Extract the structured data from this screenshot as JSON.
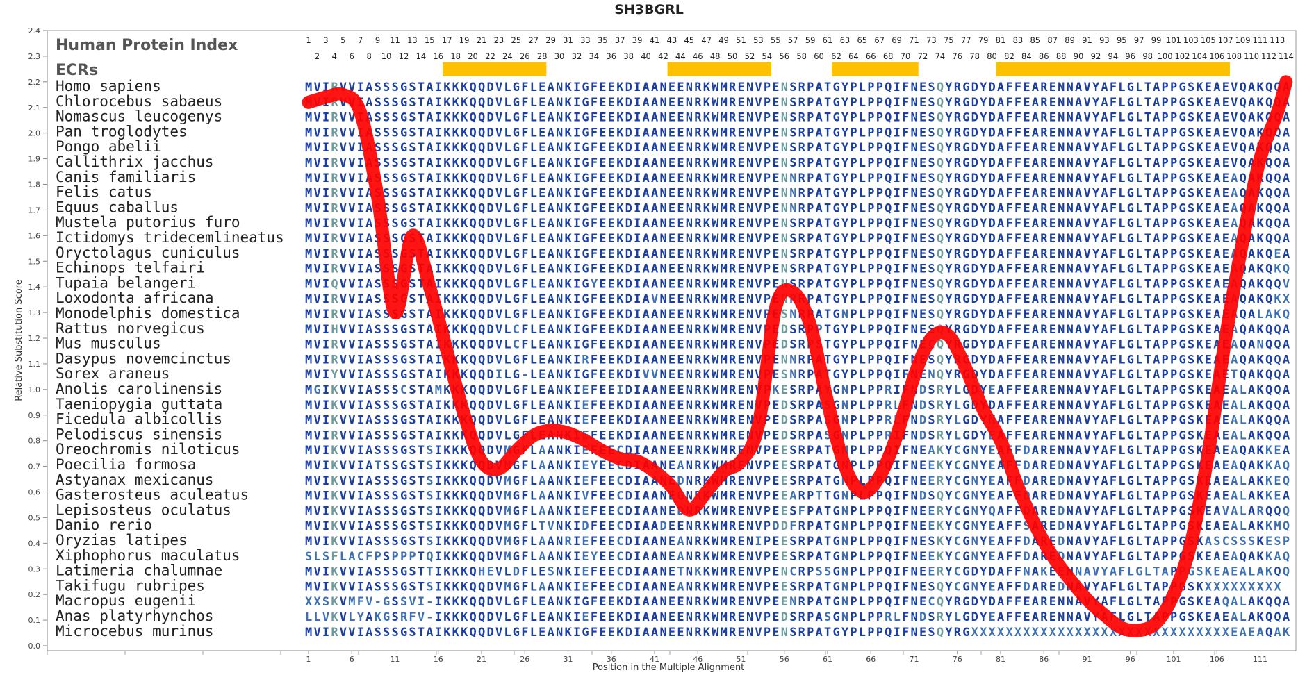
{
  "chart_data": {
    "type": "line",
    "title": "SH3BGRL",
    "xlabel": "Position in the Multiple Alignment",
    "ylabel": "Relative Substitution Score",
    "ylim": [
      0,
      2.4
    ],
    "xlim": [
      1,
      114
    ],
    "y_ticks": [
      "0.0",
      "0.1",
      "0.2",
      "0.3",
      "0.4",
      "0.5",
      "0.6",
      "0.7",
      "0.8",
      "0.9",
      "1.0",
      "1.1",
      "1.2",
      "1.3",
      "1.4",
      "1.5",
      "1.6",
      "1.7",
      "1.8",
      "1.9",
      "2.0",
      "2.1",
      "2.2",
      "2.3",
      "2.4"
    ],
    "x_ticks": [
      "1",
      "6",
      "11",
      "16",
      "21",
      "26",
      "31",
      "36",
      "41",
      "46",
      "51",
      "56",
      "61",
      "66",
      "71",
      "76",
      "81",
      "86",
      "91",
      "96",
      "101",
      "106",
      "111"
    ],
    "header_labels": {
      "index": "Human Protein Index",
      "ecrs": "ECRs"
    },
    "positions_top_odd": [
      "1",
      "3",
      "5",
      "7",
      "9",
      "11",
      "13",
      "15",
      "17",
      "19",
      "21",
      "23",
      "25",
      "27",
      "29",
      "31",
      "33",
      "35",
      "37",
      "39",
      "41",
      "43",
      "45",
      "47",
      "49",
      "51",
      "53",
      "55",
      "57",
      "59",
      "61",
      "63",
      "65",
      "67",
      "69",
      "71",
      "73",
      "75",
      "77",
      "79",
      "81",
      "83",
      "85",
      "87",
      "89",
      "91",
      "93",
      "95",
      "97",
      "99",
      "101",
      "103",
      "105",
      "107",
      "109",
      "111",
      "113"
    ],
    "positions_top_even": [
      "2",
      "4",
      "6",
      "8",
      "10",
      "12",
      "14",
      "16",
      "18",
      "20",
      "22",
      "24",
      "26",
      "28",
      "30",
      "32",
      "34",
      "36",
      "38",
      "40",
      "42",
      "44",
      "46",
      "48",
      "50",
      "52",
      "54",
      "56",
      "58",
      "60",
      "62",
      "64",
      "66",
      "68",
      "70",
      "72",
      "74",
      "76",
      "78",
      "80",
      "82",
      "84",
      "86",
      "88",
      "90",
      "92",
      "94",
      "96",
      "98",
      "100",
      "102",
      "104",
      "106",
      "108",
      "110",
      "112",
      "114"
    ],
    "ecrs": [
      [
        17,
        28
      ],
      [
        43,
        54
      ],
      [
        62,
        71
      ],
      [
        81,
        107
      ]
    ],
    "series": [
      {
        "x": [
          1,
          3,
          5,
          7,
          9,
          11,
          13,
          15,
          17,
          19,
          21,
          23,
          25,
          27,
          29,
          31,
          33,
          35,
          37,
          39,
          41,
          43,
          45,
          47,
          49,
          51,
          53,
          55,
          57,
          59,
          61,
          63,
          65,
          67,
          69,
          71,
          73,
          75,
          77,
          79,
          81,
          83,
          85,
          87,
          89,
          91,
          93,
          95,
          97,
          99,
          101,
          103,
          105,
          107,
          109,
          111,
          113,
          114
        ],
        "y": [
          2.12,
          2.14,
          2.15,
          2.08,
          1.75,
          1.3,
          1.6,
          1.4,
          1.15,
          0.9,
          0.72,
          0.69,
          0.76,
          0.82,
          0.84,
          0.83,
          0.8,
          0.76,
          0.73,
          0.72,
          0.68,
          0.62,
          0.53,
          0.6,
          0.68,
          0.72,
          0.86,
          1.32,
          1.38,
          1.25,
          0.95,
          0.7,
          0.6,
          0.66,
          0.82,
          1.05,
          1.2,
          1.21,
          1.08,
          0.92,
          0.8,
          0.62,
          0.47,
          0.35,
          0.26,
          0.18,
          0.12,
          0.07,
          0.06,
          0.09,
          0.2,
          0.4,
          0.75,
          1.2,
          1.58,
          1.9,
          2.08,
          2.2
        ]
      }
    ],
    "species": [
      "Homo sapiens",
      "Chlorocebus sabaeus",
      "Nomascus leucogenys",
      "Pan troglodytes",
      "Pongo abelii",
      "Callithrix jacchus",
      "Canis familiaris",
      "Felis catus",
      "Equus caballus",
      "Mustela putorius furo",
      "Ictidomys tridecemlineatus",
      "Oryctolagus cuniculus",
      "Echinops telfairi",
      "Tupaia belangeri",
      "Loxodonta africana",
      "Monodelphis domestica",
      "Rattus norvegicus",
      "Mus musculus",
      "Dasypus novemcinctus",
      "Sorex araneus",
      "Anolis carolinensis",
      "Taeniopygia guttata",
      "Ficedula albicollis",
      "Pelodiscus sinensis",
      "Oreochromis niloticus",
      "Poecilia formosa",
      "Astyanax mexicanus",
      "Gasterosteus aculeatus",
      "Lepisosteus oculatus",
      "Danio rerio",
      "Oryzias latipes",
      "Xiphophorus maculatus",
      "Latimeria chalumnae",
      "Takifugu rubripes",
      "Macropus eugenii",
      "Anas platyrhynchos",
      "Microcebus murinus"
    ],
    "sequences": [
      "MVIRVVIASSSGSTAIKKKQQDVLGFLEANKIGFEEKDIAANEENRKWMRENVPENSRPATGYPLPPQIFNESQYRGDYDAFFEARENNAVYAFLGLTAPPGSKEAEVQAKQQA",
      "MVIRVVIASSSGSTAIKKKQQDVLGFLEANKIGFEEKDIAANEENRKWMRENVPENSRPATGYPLPPQIFNESQYRGDYDAFFEARENNAVYAFLGLTAPPGSKEAEVQAKQQA",
      "MVIRVVIASSSGSTAIKKKQQDVLGFLEANKIGFEEKDIAANEENRKWMRENVPENSRPATGYPLPPQIFNESQYRGDYDAFFEARENNAVYAFLGLTAPPGSKEAEVQAKQQA",
      "MVIRVVIASSSGSTAIKKKQQDVLGFLEANKIGFEEKDIAANEENRKWMRENVPENSRPATGYPLPPQIFNESQYRGDYDAFFEARENNAVYAFLGLTAPPGSKEAEVQAKQQA",
      "MVIRVVIASSSGSTAIKKKQQDVLGFLEANKIGFEEKDIAANEENRKWMRENVPENSRPATGYPLPPQIFNESQYRGDYDAFFEARENNAVYAFLGLTAPPGSKEAEVQAKQQA",
      "MVIRVVIASSSGSTAIKKKQQDVLGFLEANKIGFEEKDIAANEENRKWMRENVPENSRPATGYPLPPQIFNESQYRGDYDAFFEARENNAVYAFLGLTAPPGSKEAEVQAKQQA",
      "MVIRVVIASSSGSTAIKKKQQDVLGFLEANKIGFEEKDIAANEENRKWMRENVPENNRPATGYPLPPQIFNESQYRGDYDAFFEARENNAVYAFLGLTAPPGSKEAEAQAKQQA",
      "MVIRVVIASSSGSTAIKKKQQDVLGFLEANKIGFEEKDIAANEENRKWMRENVPENNRPATGYPLPPQIFNESQYRGDYDAFFEARENNAVYAFLGLTAPPGSKEAEAQAKQQA",
      "MVIRVVIASSSGSTAIKKKQQDVLGFLEANKIGFEEKDIAANEENRKWMRENVPENNRPATGYPLPPQIFNESQYRGDYDAFFEARENNAVYAFLGLTAPPGSKEAEAQAKQQA",
      "MVIRVVIASSSGSTAIKKKQQDVLGFLEANKIGFEEKDIAANEENRKWMRENVPENSRPATGYPLPPQIFNESQYRGDYDAFFEARENNAVYAFLGLTAPPGSKEAEAQAKQQA",
      "MVIRVVIASSSGSTAIKKKQQDVLGFLEANKIGFEEKDIAANEENRKWMRENVPENSRPATGYPLPPQIFNESQYRGDYDAFFEARENNAVYAFLGLTAPPGSKEAEAQAKQQA",
      "MVIRVVIASSSGSTAIKKKQQDVLGFLEANKIGFEEKDIAANEENRKWMRENVPENSRPATGYPLPPQIFNESQYRGDYDAFFEARENNAVYAFLGLTAPPGSKEAEAQAKQEA",
      "MVIRVVIASSSGSTAIKKKQQDVLGFLEANKIGFEEKDIAANEENRKWMRENVPENSRPATGYPLPPQIFNESQYRGDYDAFFEARENNAVYAFLGLTAPPGSKEAEAQAKQKQ",
      "MVIQVVIASSSGSTAIKKKQQDVLGFLEANKIGYEEKDIAANEENRKWMRENVPENSRPATGYPLPPQIFNESQYRGDYDAFFEARENNAVYAFLGLTAPPGSKEAEAQAKQQV",
      "MVIRVVIASSSGSTAIKKKQQDVLGFLEANKIGFEEKDIAVNEENRKWMRENVPENRRPATGYPLPPQIFNESQYRGDYDAFFEARENNAVYAFLGLTAPPGSKEAEAQAKQKX",
      "MVIRVVIASSSGSTAIKKKQQDVLGFLEANKIGFEEKDIAANEENRKWMRENVPESNRPATGNPLPPQIFNESQYRGDYDAFFEARENNAVYAFLGLTAPPGSKEAEAQALAKQQA",
      "MVIHVVIASSSGSTAIKKKQQDVLCFLEANKIGFEEKDIAANEENRKWMRENVPEDSRPPTGYPLPPQIFNESQYRGDYDAFFEARENNAVYAFLGLTAPPGSKEAEAQAKQQA",
      "MVIRVVIASSSGSTAIKKKQQDVLCFLEANKIGFEEKDIAANEENRKWMRENVPEDSRPSTGYPLPPQIFNECQYRGDYDAFFEARENNAVYAFLGLTAPPGSKEAEAQANQQA",
      "MVIRVVIASSSGSTAIKKKQQDVLGFLEANKIRFEEKDIAANEENRKWMRENVPENNRPATGYPLPPQIFNESQYRGDYDAFFEARENNAVYAFLGLTAPPGSKEAEAQAKQQA",
      "MVIYVVIASSSGSTAIKKKQQDILG-LEANKIGFEEKDIVVNEENRKWMRENVPESNRPATGYPLPPQIFNENQYRGDYDAFFEARENNAVYAFLGLTAPPGSKEAETQAKQQA",
      "MGIKVVIASSSCSTAMKKKQQDVLGFLEANKIEFEEIDIAANEENRKWMRENVPKESRPAYGNPLPPRIFNDSRYLGDYEAFFEARENNAVYAFLGLTAPPGSKEAEALAKQQA",
      "MVIKVVIASSSGSTAIKKKQQDVLGFLEANKIEFEEKDIAANEENRKWMRENVPEDSRPASGNPLPPRLFNDSRYLGDYDAFFEARENNAVYAFLGLTAPPGSKEAEALAKQQA",
      "MVIKVVIASSSGSTAIKKKQQDVLGFLEANKIEFEEKDIAANEENRKWMRENVPEDSRPASGNPLPPRLFNDSRYLGDYNAFFEARENNAVYAFLGLTAPPGSKEAEALAKQQA",
      "MVIRVVIASSSGSTAIKKKQQDVLGFLEANKIEFEEKDIAANEENRKWMRENVPEDSRPASGNPLPPRIFNDSRYLGDYEAFFEARENNAVYAFLGLTAPPGSKEAEALAKQQA",
      "MVIKVVIASSSGSTSIKKKQQDVMGFLAANKIEFEECDIAANEENRKWMRENVPEESRPATGNPLPPQIFNEAKYCGNYEAFFDARENNAVYAFLGLTAPPGSKEAEAQAKKEA",
      "MVIKVVIATSSGSTSIKKKQQDVMGFLAANKIEYEECDIAANEANRKWMRENVPEESRPATGNPLPPQIFNEEKYCGNYEAFFDAREDNAVYAFLGLTAPPGSKEAEAQAKKAQ",
      "MVIKVVIASSSGSTSIKKKQQDVMGFLAANKIEFEECDIAANEDNRKWMRENVPEESRPATGNPLPPQIFNEERYCGNYEAFFDAREDNAVYAFLGLTAPPGSKEAEALAKKEQ",
      "MVIKVVIASSSGSTSIKKKQQDVMGFLAANKIVFEECDIAANEGNRKWMRENVPEEARPTTGNPLPPQIFNDSQYCGNYEAFFDAREDNAVYAFLGLTAPPGSKEAEALAKKEA",
      "MVIKVVIASSSGSTSIKKKQQDVMGFLAANKIEFEECDIAANEDNRKWMRENVPEESFPATGNPLPPQIFNEERYCGNYQAFFDAREDNAVYAFLGLTAPPGSKEAVALARQQQ",
      "MVIKVVIASSSGSTSIKKKQQDVMGFLTVNKIDFEECDIAADEENRKWMRENVPDDFRPATGNPLPPQIFNEEKYCGNYEAFFSAREDNAVYAFLGLTAPPGSKEAEALAKKMQ",
      "MVIKVVIASSSGSTSIKKKQQDVMGFLAANRIEFEECDIAANEANRKWMRENIPEESRPATGNPLPPQIFNESKYCGNYEAFFDAREDNAVYAFLGLTAPPGSKASCSSSKESP",
      "SLSFLACFPSPPPTQIKKKQQDVMGFLAANKIEYEECDIAANEANRKWMRENVPEESRPATGNPLPPQIFNEEKYCGNYEAFFDAREDNAVYAFLGLTAPPGSKEAEAQAKKAQ",
      "MVIKVVIASSSGSTTIKKKQHEVLDFLESNKIEFEECDIAANETNKKWMRENVPENCRPSSGNPLPPQIFNEERYCGDYDAFFNAKEENNAVYAFLGLTAPPGSKEAEALAKQQA",
      "MVIKVVIASSSGSTSIKKKQQDVMGFLAANKIEFEECDIAANEANRKWMRENVPEESRPATGNPLPPQIFNESQYCGNYEAFFDAREDNAVYAFLGLTAPPGSKXXXXXXXXX",
      "XXSKVMFV-GSSVI-IKKKQQDVLGFLEANKIGFEEKDIAANEENRKWMRENVPEENRPATGNPLPPQIFNECQYRGDYDAFFEARENNAVYAFLGLTAPPGSKEAQALAKQQA",
      "LLVKVLYAKGSRFV-IKKKQQDVLGFLEANKIEFEEKDIAANEENRKWMRENVPEDSRPASGNPLPPRLFNDSRYLGDYEAFFEARENNAVYAFLGLTAPPGSKEAEALAKQQA",
      "MVIRVVIASSSGSTAIKKKQQDVLGFLEANKIGFEEKDIAANEENRKWMRENVPENSRPATGYPLPPQIFNESQYRGXXXXXXXXXXXXXXXXXXXXXXXXXXXXXXEAEAQAKQQA"
    ],
    "colors": {
      "conserved": "#1a3f9e",
      "semi": "#3d6fb3",
      "variable": "#6a9a9a",
      "line": "#ff0000",
      "ecr": "#ffc000"
    },
    "variable_columns": [
      4,
      56,
      74
    ],
    "grid": false
  }
}
